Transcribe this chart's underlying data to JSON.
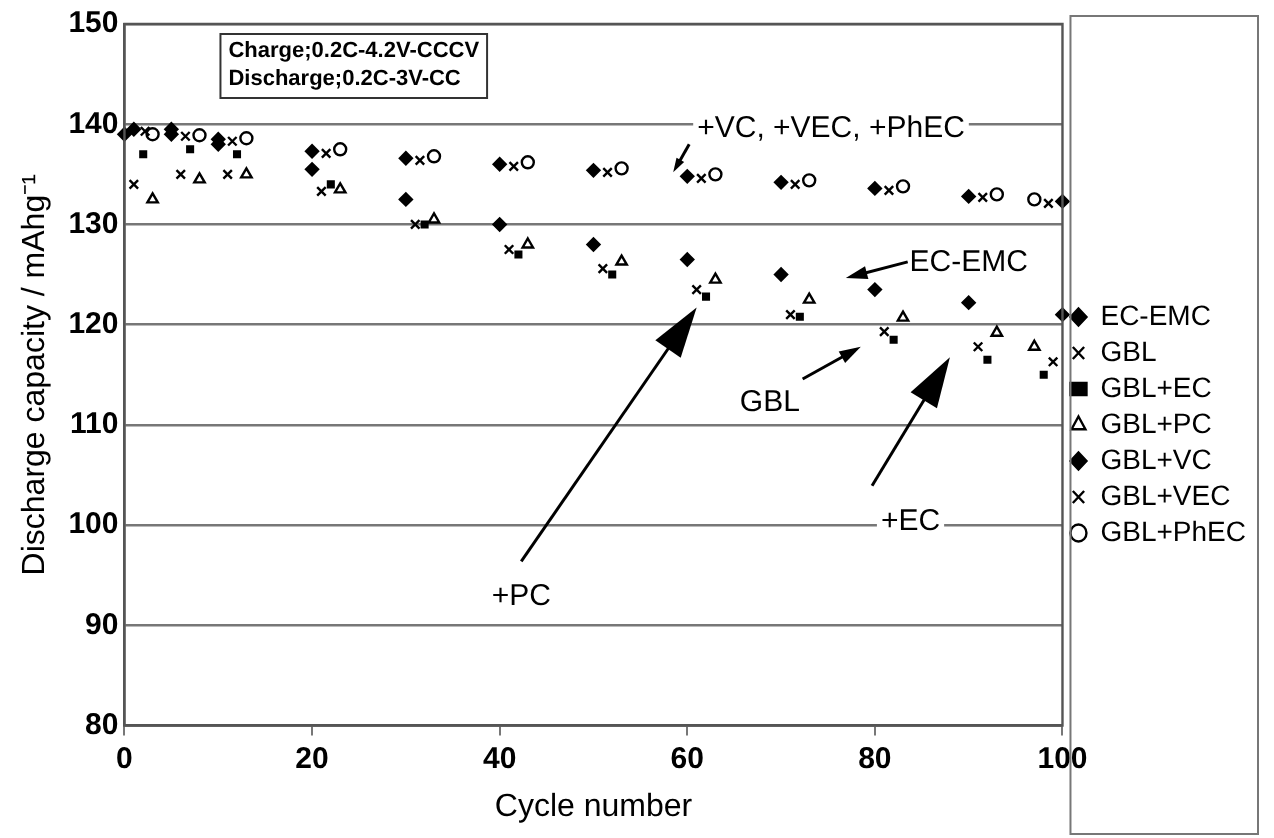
{
  "chart_data": {
    "type": "scatter",
    "xlabel": "Cycle number",
    "ylabel": "Discharge capacity / mAhg⁻¹",
    "x": [
      0,
      5,
      10,
      20,
      30,
      40,
      50,
      60,
      70,
      80,
      90,
      100
    ],
    "series": [
      {
        "name": "EC-EMC",
        "color": "#000000",
        "marker": "diamond",
        "values": [
          139,
          139.5,
          138,
          135.5,
          132.5,
          130,
          128,
          126.5,
          125,
          123.5,
          122.2,
          121
        ]
      },
      {
        "name": "GBL",
        "color": "#000000",
        "marker": "cross",
        "x": [
          1,
          6,
          11,
          21,
          31,
          41,
          51,
          61,
          71,
          81,
          91,
          99
        ],
        "values": [
          134,
          135,
          135,
          133.3,
          130,
          127.5,
          125.6,
          123.5,
          121,
          119.3,
          117.8,
          116.3
        ]
      },
      {
        "name": "GBL+EC",
        "color": "#000000",
        "marker": "square",
        "x": [
          2,
          7,
          12,
          22,
          32,
          42,
          52,
          62,
          72,
          82,
          92,
          98
        ],
        "values": [
          137,
          137.5,
          137,
          134,
          130,
          127,
          125,
          122.8,
          120.8,
          118.5,
          116.5,
          115
        ]
      },
      {
        "name": "GBL+PC",
        "color": "#000000",
        "marker": "triangle",
        "x": [
          3,
          8,
          13,
          23,
          33,
          43,
          53,
          63,
          73,
          83,
          93,
          97
        ],
        "values": [
          132.5,
          134.5,
          135,
          133.5,
          130.5,
          128,
          126.3,
          124.5,
          122.5,
          120.7,
          119.2,
          117.8
        ]
      },
      {
        "name": "GBL+VC",
        "color": "#000000",
        "marker": "diamond",
        "x": [
          1,
          5,
          10,
          20,
          30,
          40,
          50,
          60,
          70,
          80,
          90,
          100
        ],
        "values": [
          139.5,
          139,
          138.5,
          137.3,
          136.6,
          136,
          135.4,
          134.8,
          134.2,
          133.6,
          132.8,
          132.3
        ]
      },
      {
        "name": "GBL+VEC",
        "color": "#000000",
        "marker": "cross",
        "x": [
          2.2,
          6.5,
          11.5,
          21.5,
          31.5,
          41.5,
          51.5,
          61.5,
          71.5,
          81.5,
          91.5,
          98.5
        ],
        "values": [
          139.3,
          138.8,
          138.3,
          137.1,
          136.4,
          135.8,
          135.2,
          134.6,
          134,
          133.4,
          132.7,
          132.1
        ]
      },
      {
        "name": "GBL+PhEC",
        "color": "#000000",
        "marker": "circle",
        "x": [
          3,
          8,
          13,
          23,
          33,
          43,
          53,
          63,
          73,
          83,
          93,
          97
        ],
        "values": [
          139,
          138.9,
          138.6,
          137.5,
          136.8,
          136.2,
          135.6,
          135,
          134.4,
          133.8,
          133,
          132.5
        ]
      }
    ],
    "xlim": [
      0,
      100
    ],
    "xticks": [
      0,
      20,
      40,
      60,
      80,
      100
    ],
    "ylim": [
      80,
      150
    ],
    "yticks": [
      80,
      90,
      100,
      110,
      120,
      130,
      140,
      150
    ],
    "grid": "y",
    "legend": "right",
    "annotations": [
      "Charge;0.2C-4.2V-CCCV",
      "Discharge;0.2C-3V-CC",
      {
        "text": "+VC, +VEC, +PhEC",
        "x": 58.5,
        "y": 135.2
      },
      "EC-EMC",
      "GBL",
      "+PC",
      "+EC"
    ]
  }
}
